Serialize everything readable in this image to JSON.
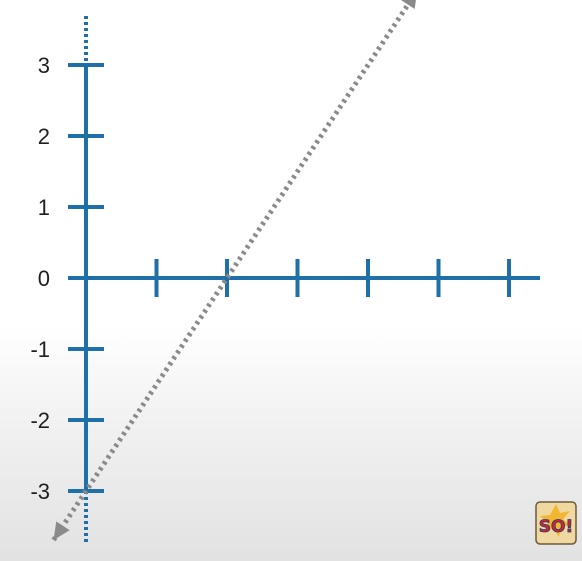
{
  "chart_data": {
    "type": "line",
    "title": "",
    "xlabel": "",
    "ylabel": "",
    "xlim": [
      0,
      6
    ],
    "ylim": [
      -3,
      3
    ],
    "y_ticks": [
      "3",
      "2",
      "1",
      "0",
      "-1",
      "-2",
      "-3"
    ],
    "x_tick_count": 6,
    "grid": false,
    "legend": "none",
    "series": [
      {
        "style": "dotted",
        "arrows": "both",
        "x": [
          0,
          2
        ],
        "y": [
          -3,
          0
        ],
        "slope": 1.5,
        "intercept": -3
      }
    ],
    "colors": {
      "axes": "#1f6fa8",
      "line": "#8a8a8a",
      "text": "#1f1f1f"
    }
  },
  "logo": {
    "name": "so-logo",
    "text": "SO!"
  }
}
